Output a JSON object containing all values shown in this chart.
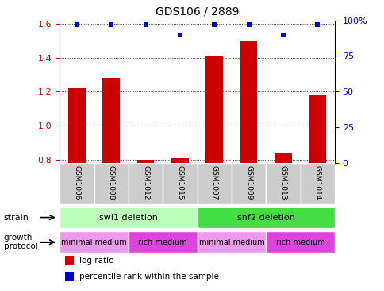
{
  "title": "GDS106 / 2889",
  "samples": [
    "GSM1006",
    "GSM1008",
    "GSM1012",
    "GSM1015",
    "GSM1007",
    "GSM1009",
    "GSM1013",
    "GSM1014"
  ],
  "log_ratios": [
    1.22,
    1.28,
    0.8,
    0.81,
    1.41,
    1.5,
    0.84,
    1.18
  ],
  "percentile_ranks": [
    97,
    97,
    97,
    90,
    97,
    97,
    90,
    97
  ],
  "ylim_left": [
    0.78,
    1.62
  ],
  "ylim_right": [
    0,
    100
  ],
  "yticks_left": [
    0.8,
    1.0,
    1.2,
    1.4,
    1.6
  ],
  "yticks_right": [
    0,
    25,
    50,
    75,
    100
  ],
  "bar_color": "#cc0000",
  "dot_color": "#0000cc",
  "strain_groups": [
    {
      "label": "swi1 deletion",
      "start": 0,
      "end": 3,
      "color": "#bbffbb"
    },
    {
      "label": "snf2 deletion",
      "start": 4,
      "end": 7,
      "color": "#44dd44"
    }
  ],
  "protocol_groups": [
    {
      "label": "minimal medium",
      "start": 0,
      "end": 1,
      "color": "#ee99ee"
    },
    {
      "label": "rich medium",
      "start": 2,
      "end": 3,
      "color": "#dd44dd"
    },
    {
      "label": "minimal medium",
      "start": 4,
      "end": 5,
      "color": "#ee99ee"
    },
    {
      "label": "rich medium",
      "start": 6,
      "end": 7,
      "color": "#dd44dd"
    }
  ],
  "legend_items": [
    {
      "label": "log ratio",
      "color": "#cc0000"
    },
    {
      "label": "percentile rank within the sample",
      "color": "#0000cc"
    }
  ],
  "tick_color_left": "#cc0000",
  "tick_color_right": "#0000cc",
  "sample_box_color": "#cccccc",
  "bar_width": 0.5
}
